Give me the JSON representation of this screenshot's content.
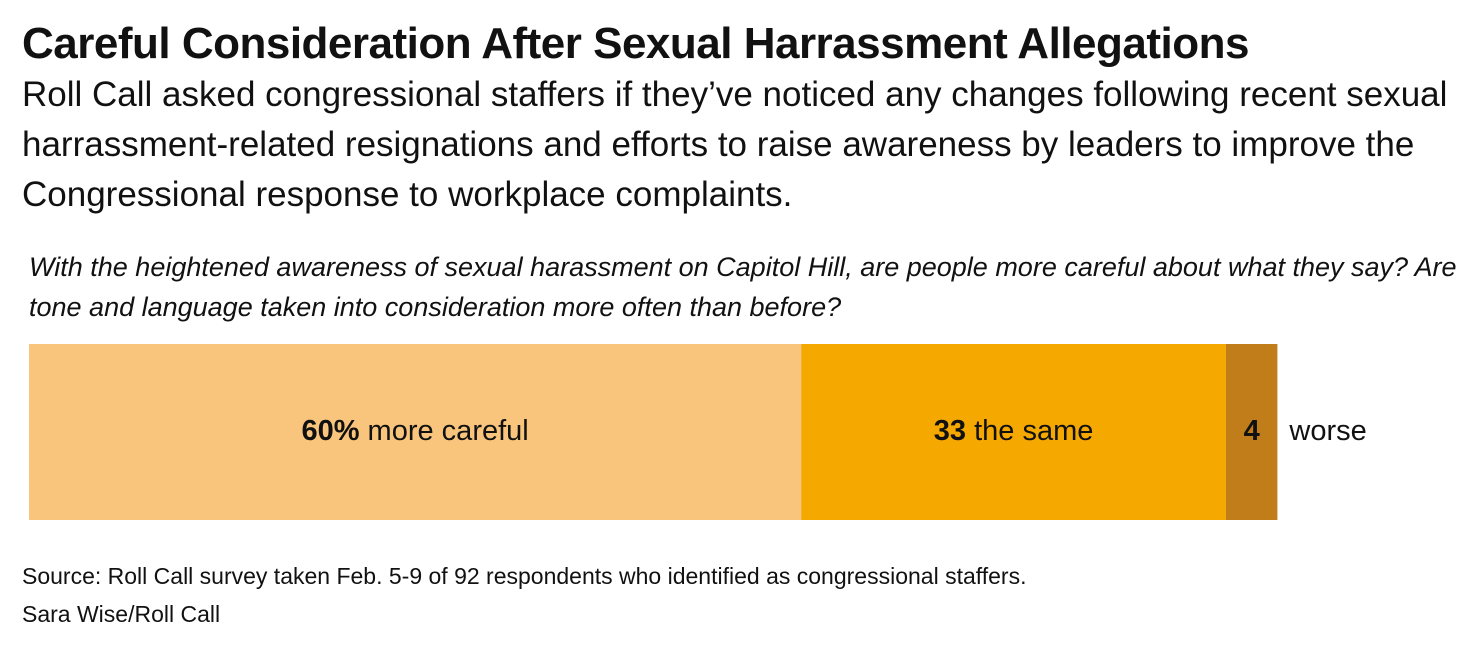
{
  "header": {
    "title": "Careful Consideration After Sexual Harrassment Allegations",
    "subtitle": "Roll Call asked congressional staffers if they’ve noticed any changes following recent sexual harrassment-related resignations and efforts to raise awareness by leaders to improve the Congressional response to workplace complaints."
  },
  "question": "With the heightened awareness of sexual harassment on Capitol Hill, are people more careful about what they say? Are tone and language taken into consideration more often than before?",
  "chart_data": {
    "type": "bar",
    "orientation": "horizontal-stacked",
    "unit": "%",
    "segments": [
      {
        "value_label": "60%",
        "label": "more careful",
        "value": 60,
        "color": "#F9C57C"
      },
      {
        "value_label": "33",
        "label": "the same",
        "value": 33,
        "color": "#F5A800"
      },
      {
        "value_label": "4",
        "label": "worse",
        "value": 4,
        "color": "#C17D1A"
      }
    ],
    "legend": "none",
    "grid": false
  },
  "footer": {
    "source": "Source: Roll Call survey taken Feb. 5-9 of 92 respondents who identified as congressional staffers.",
    "credit": "Sara Wise/Roll Call"
  }
}
